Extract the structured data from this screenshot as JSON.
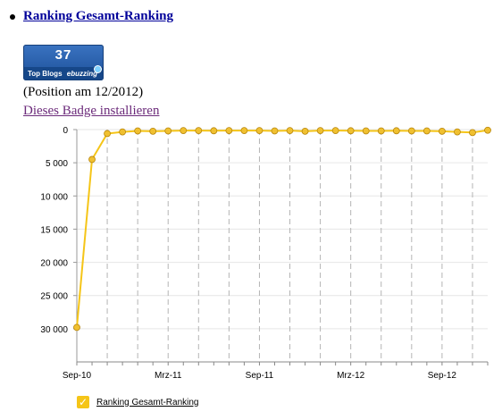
{
  "header": {
    "title_link": "Ranking Gesamt-Ranking"
  },
  "badge": {
    "number": "37",
    "caption": "Top Blogs",
    "brand": "ebuzzing"
  },
  "position_text": "(Position am 12/2012)",
  "install_link": "Dieses Badge installieren",
  "chart_data": {
    "type": "line",
    "title": "",
    "xlabel": "",
    "ylabel": "",
    "y_inverted": true,
    "ylim": [
      0,
      35000
    ],
    "y_ticks": [
      0,
      5000,
      10000,
      15000,
      20000,
      25000,
      30000
    ],
    "y_tick_labels": [
      "0",
      "5 000",
      "10 000",
      "15 000",
      "20 000",
      "25 000",
      "30 000"
    ],
    "x_tick_labels": [
      "Sep-10",
      "Mrz-11",
      "Sep-11",
      "Mrz-12",
      "Sep-12"
    ],
    "x_tick_positions": [
      0,
      6,
      12,
      18,
      24
    ],
    "x_count": 28,
    "line_color": "#f5c518",
    "marker_color": "#f0c030",
    "grid": "vertical dashed at points 2, 4, ..., 26; horizontal light lines at y ticks",
    "legend_position": "bottom-left",
    "series": [
      {
        "name": "Ranking Gesamt-Ranking",
        "values": [
          29800,
          4500,
          600,
          350,
          200,
          250,
          200,
          150,
          150,
          180,
          150,
          150,
          150,
          200,
          150,
          250,
          150,
          150,
          180,
          200,
          200,
          180,
          200,
          200,
          250,
          350,
          450,
          100
        ]
      }
    ]
  },
  "legend": {
    "check_symbol": "✓",
    "label": "Ranking Gesamt-Ranking"
  }
}
